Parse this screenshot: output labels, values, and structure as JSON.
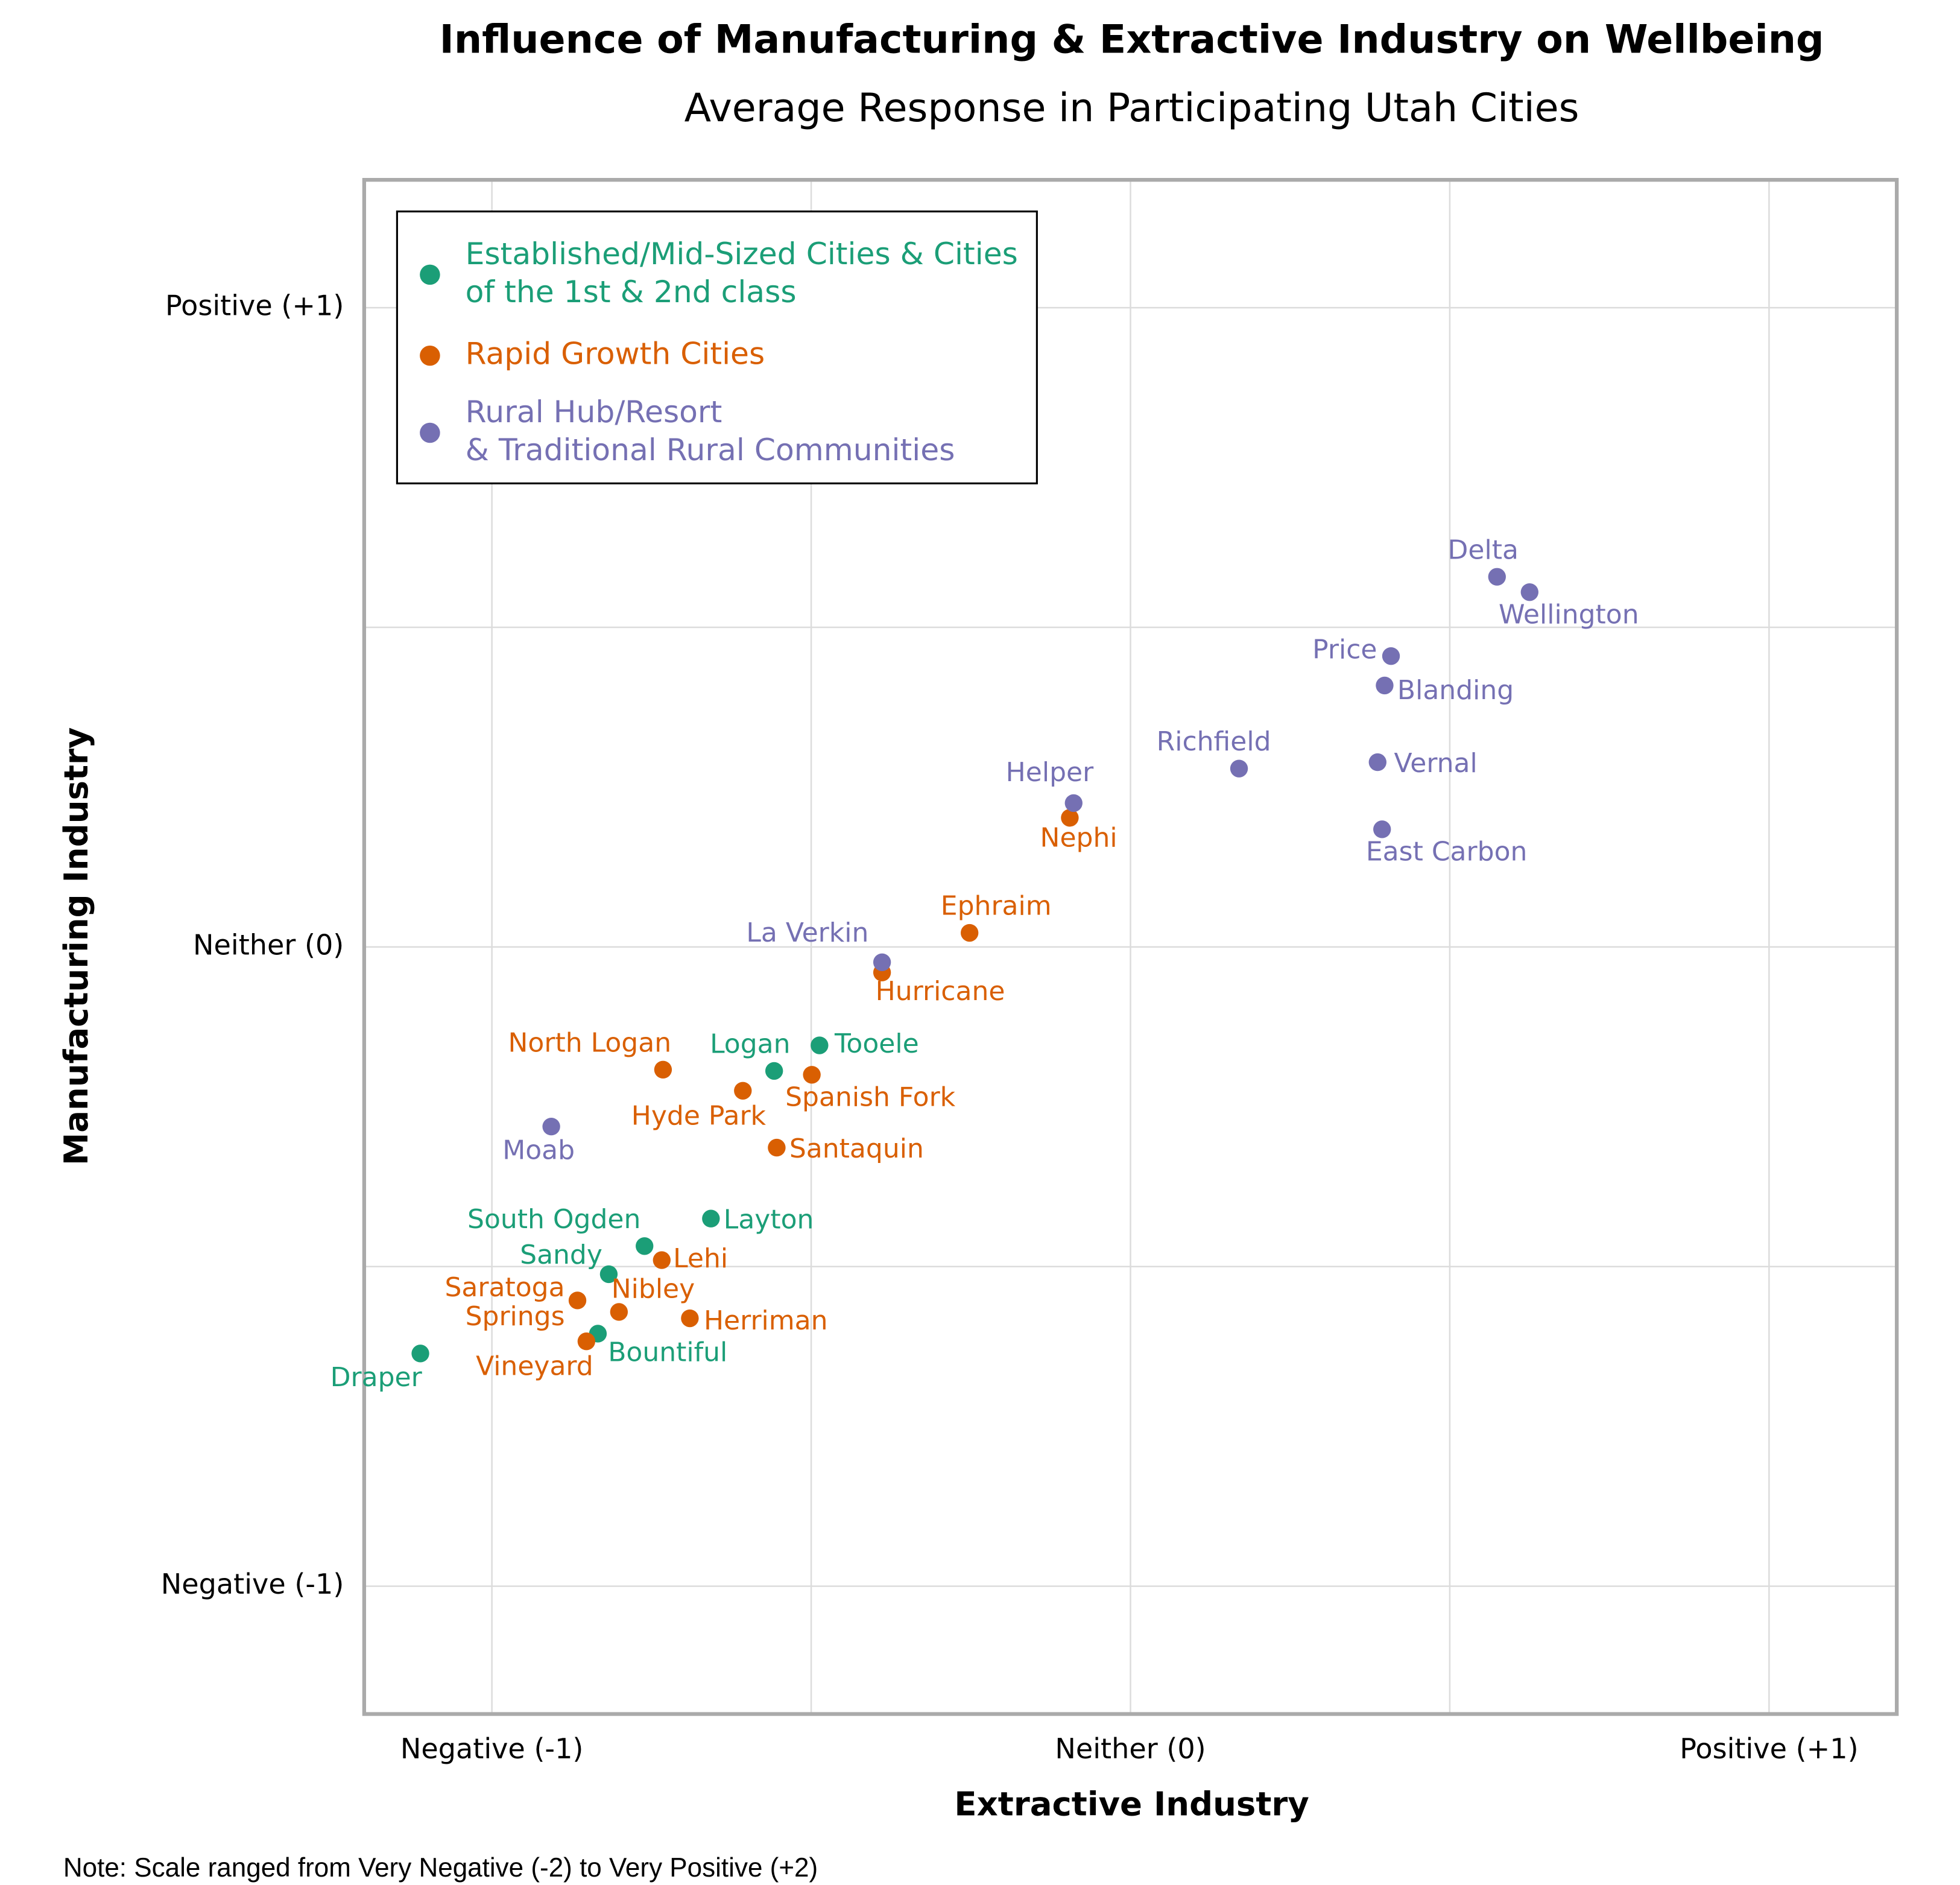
{
  "chart_data": {
    "type": "scatter",
    "title": "Influence of Manufacturing & Extractive Industry on Wellbeing",
    "subtitle": "Average Response in Participating Utah Cities",
    "x_label": "Extractive Industry",
    "y_label": "Manufacturing Industry",
    "note": "Note: Scale ranged from Very Negative (-2) to Very Positive (+2)",
    "xlim": [
      -1.2,
      1.2
    ],
    "ylim": [
      -1.2,
      1.2
    ],
    "xticks": [
      {
        "value": -1,
        "label": "Negative (-1)"
      },
      {
        "value": 0,
        "label": "Neither (0)"
      },
      {
        "value": 1,
        "label": "Positive (+1)"
      }
    ],
    "yticks": [
      {
        "value": -1,
        "label": "Negative (-1)"
      },
      {
        "value": 0,
        "label": "Neither (0)"
      },
      {
        "value": 1,
        "label": "Positive (+1)"
      }
    ],
    "minor_ticks": [
      -0.5,
      0.5
    ],
    "grid": true,
    "legend": "upper left",
    "series": [
      {
        "name": "Established/Mid-Sized Cities & Cities of the 1st & 2nd class",
        "color": "#1b9e77",
        "labels": [
          "Tooele",
          "Logan",
          "Layton",
          "South Ogden",
          "Sandy",
          "Bountiful",
          "Draper"
        ],
        "x": [
          -0.487,
          -0.558,
          -0.657,
          -0.761,
          -0.817,
          -0.834,
          -1.112
        ],
        "values": [
          -0.154,
          -0.194,
          -0.425,
          -0.468,
          -0.512,
          -0.605,
          -0.636
        ]
      },
      {
        "name": "Rapid Growth Cities",
        "color": "#d95f02",
        "labels": [
          "Nephi",
          "Ephraim",
          "Hurricane",
          "Spanish Fork",
          "North Logan",
          "Hyde Park",
          "Santaquin",
          "Lehi",
          "Nibley",
          "Herriman",
          "Saratoga Springs",
          "Vineyard"
        ],
        "x": [
          -0.095,
          -0.252,
          -0.389,
          -0.499,
          -0.732,
          -0.607,
          -0.554,
          -0.734,
          -0.801,
          -0.69,
          -0.866,
          -0.852
        ],
        "values": [
          0.202,
          0.022,
          -0.04,
          -0.2,
          -0.192,
          -0.225,
          -0.314,
          -0.49,
          -0.571,
          -0.581,
          -0.553,
          -0.617
        ]
      },
      {
        "name": "Rural Hub/Resort & Traditional Rural Communities",
        "color": "#7570b3",
        "labels": [
          "Delta",
          "Wellington",
          "Price",
          "Blanding",
          "Vernal",
          "Richfield",
          "East Carbon",
          "Helper",
          "La Verkin",
          "Moab"
        ],
        "x": [
          0.574,
          0.625,
          0.408,
          0.398,
          0.387,
          0.17,
          0.394,
          -0.089,
          -0.389,
          -0.907
        ],
        "values": [
          0.579,
          0.555,
          0.455,
          0.409,
          0.289,
          0.279,
          0.184,
          0.225,
          -0.024,
          -0.281
        ]
      }
    ]
  }
}
